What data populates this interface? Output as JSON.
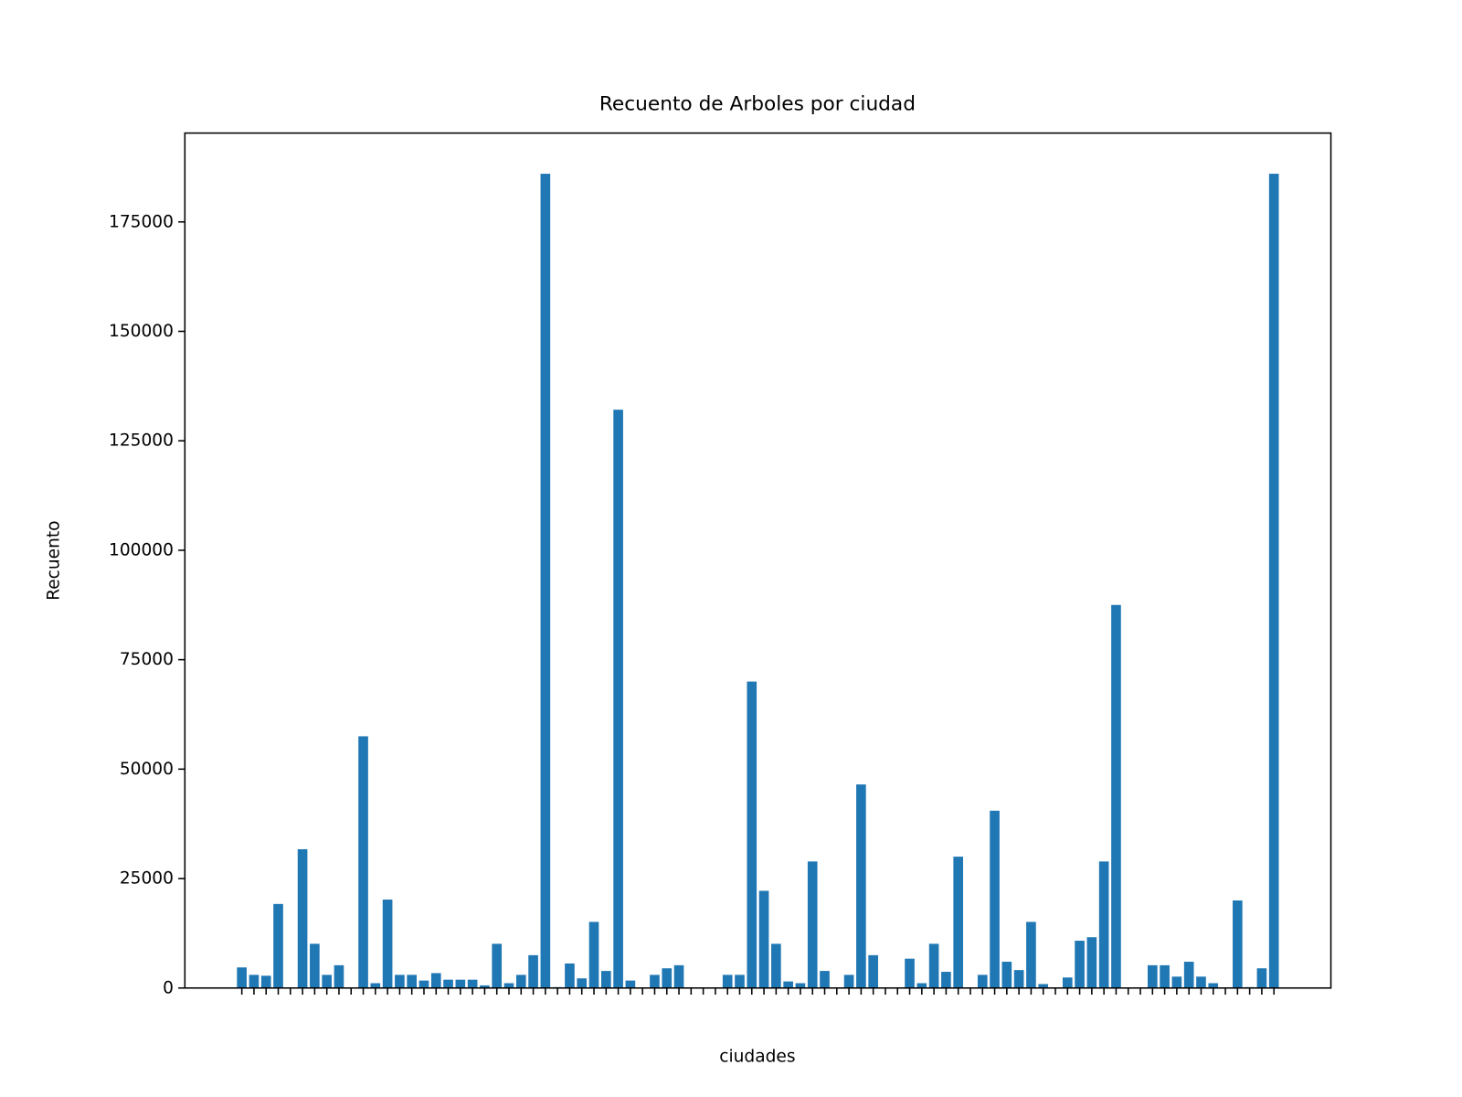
{
  "chart_data": {
    "type": "bar",
    "title": "Recuento de Arboles por ciudad",
    "x_label": "ciudades",
    "y_label": "Recuento",
    "categories": [
      null,
      null,
      null,
      null,
      null,
      null,
      null,
      null,
      null,
      null,
      null,
      null,
      null,
      null,
      null,
      null,
      null,
      null,
      null,
      null,
      null,
      null,
      null,
      null,
      null,
      null,
      null,
      null,
      null,
      null,
      null,
      null,
      null,
      null,
      null,
      null,
      null,
      null,
      null,
      null,
      null,
      null,
      null,
      null,
      null,
      null,
      null,
      null,
      null,
      null,
      null,
      null,
      null,
      null,
      null,
      null,
      null,
      null,
      null,
      null,
      null,
      null,
      null,
      null,
      null,
      null,
      null,
      null,
      null,
      null,
      null,
      null,
      null,
      null,
      null,
      null,
      null,
      null,
      null,
      null,
      null,
      null,
      null,
      null,
      null,
      null
    ],
    "values": [
      4700,
      3000,
      2800,
      19200,
      0,
      31700,
      10100,
      3000,
      5200,
      0,
      57500,
      1100,
      20200,
      3000,
      3000,
      1700,
      3400,
      1900,
      1900,
      1900,
      600,
      10100,
      1100,
      3000,
      7500,
      186000,
      200,
      5600,
      2200,
      15100,
      3900,
      132100,
      1700,
      0,
      3000,
      4500,
      5200,
      0,
      0,
      0,
      3000,
      3000,
      70000,
      22200,
      10100,
      1500,
      1100,
      28900,
      3900,
      0,
      3000,
      46500,
      7500,
      0,
      0,
      6700,
      1100,
      10100,
      3700,
      30000,
      0,
      3000,
      40500,
      6000,
      4100,
      15100,
      900,
      0,
      2400,
      10800,
      11600,
      28900,
      87500,
      0,
      0,
      5200,
      5200,
      2600,
      6000,
      2600,
      1100,
      0,
      20000,
      200,
      4500,
      186000
    ],
    "color": "#1f77b4",
    "ylim": [
      0,
      195300
    ],
    "yticks": [
      0,
      25000,
      50000,
      75000,
      100000,
      125000,
      150000,
      175000
    ],
    "grid": false
  }
}
